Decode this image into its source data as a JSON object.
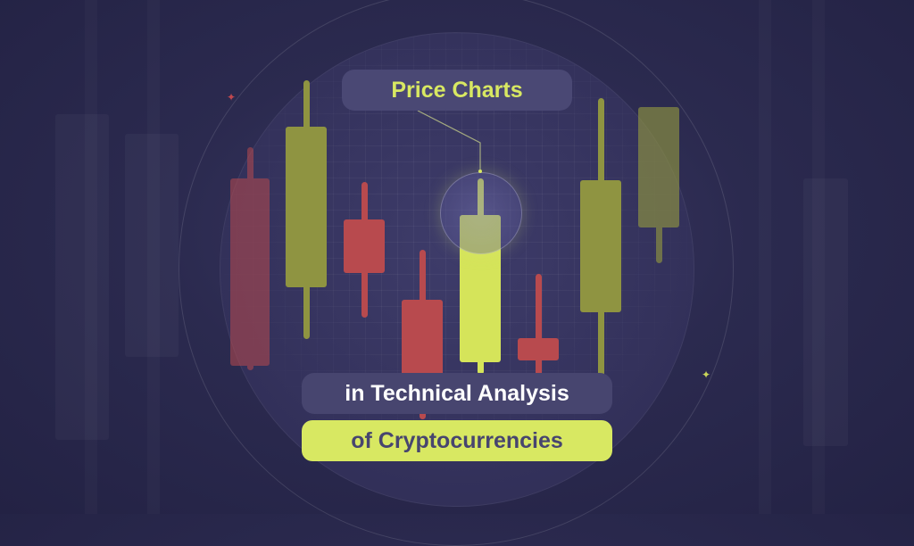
{
  "title": "Price Charts",
  "subtitle_line1": "in Technical Analysis",
  "subtitle_line2": "of Cryptocurrencies",
  "colors": {
    "accent": "#d8e862",
    "bullish": "#8f9441",
    "bearish": "#b84a4e",
    "pill_bg": "#47456f",
    "background": "#2b2a4f"
  },
  "icons": [
    "sparkle-icon-red",
    "sparkle-icon-yellow",
    "magnifier-lens"
  ]
}
